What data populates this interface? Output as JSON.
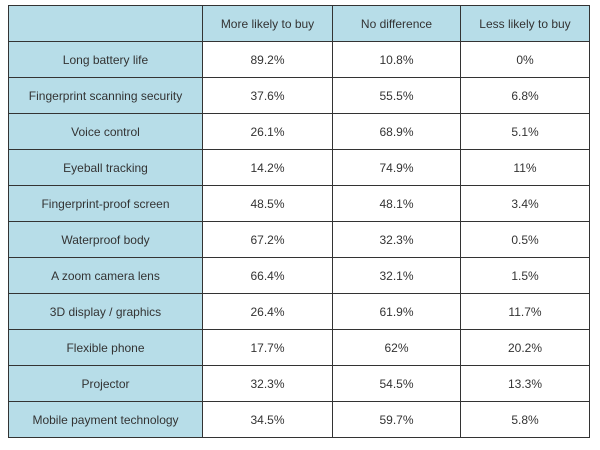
{
  "table": {
    "header_color": "#b7dde8",
    "columns": [
      "",
      "More likely to buy",
      "No difference",
      "Less likely to buy"
    ],
    "rows": [
      [
        "Long battery life",
        "89.2%",
        "10.8%",
        "0%"
      ],
      [
        "Fingerprint scanning security",
        "37.6%",
        "55.5%",
        "6.8%"
      ],
      [
        "Voice control",
        "26.1%",
        "68.9%",
        "5.1%"
      ],
      [
        "Eyeball tracking",
        "14.2%",
        "74.9%",
        "11%"
      ],
      [
        "Fingerprint-proof screen",
        "48.5%",
        "48.1%",
        "3.4%"
      ],
      [
        "Waterproof body",
        "67.2%",
        "32.3%",
        "0.5%"
      ],
      [
        "A zoom camera lens",
        "66.4%",
        "32.1%",
        "1.5%"
      ],
      [
        "3D display / graphics",
        "26.4%",
        "61.9%",
        "11.7%"
      ],
      [
        "Flexible phone",
        "17.7%",
        "62%",
        "20.2%"
      ],
      [
        "Projector",
        "32.3%",
        "54.5%",
        "13.3%"
      ],
      [
        "Mobile payment technology",
        "34.5%",
        "59.7%",
        "5.8%"
      ]
    ]
  }
}
